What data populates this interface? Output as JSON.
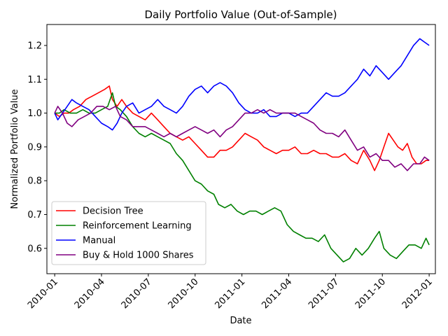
{
  "chart_data": {
    "type": "line",
    "title": "Daily Portfolio Value (Out-of-Sample)",
    "xlabel": "Date",
    "ylabel": "Normalized Portfolio Value",
    "xlim": [
      -0.5,
      24.4
    ],
    "ylim": [
      0.525,
      1.262
    ],
    "x_ticks": [
      {
        "pos": 0,
        "label": "2010-01"
      },
      {
        "pos": 3,
        "label": "2010-04"
      },
      {
        "pos": 6,
        "label": "2010-07"
      },
      {
        "pos": 9,
        "label": "2010-10"
      },
      {
        "pos": 12,
        "label": "2011-01"
      },
      {
        "pos": 15,
        "label": "2011-04"
      },
      {
        "pos": 18,
        "label": "2011-07"
      },
      {
        "pos": 21,
        "label": "2011-10"
      },
      {
        "pos": 24,
        "label": "2012-01"
      }
    ],
    "y_ticks": [
      {
        "pos": 0.6,
        "label": "0.6"
      },
      {
        "pos": 0.7,
        "label": "0.7"
      },
      {
        "pos": 0.8,
        "label": "0.8"
      },
      {
        "pos": 0.9,
        "label": "0.9"
      },
      {
        "pos": 1.0,
        "label": "1.0"
      },
      {
        "pos": 1.1,
        "label": "1.1"
      },
      {
        "pos": 1.2,
        "label": "1.2"
      }
    ],
    "legend_position": "lower-left",
    "series": [
      {
        "name": "Decision Tree",
        "color": "#ff0000",
        "points": [
          [
            0,
            1.0
          ],
          [
            0.3,
            0.99
          ],
          [
            0.6,
            1.0
          ],
          [
            0.9,
            1.0
          ],
          [
            1.2,
            1.01
          ],
          [
            1.6,
            1.02
          ],
          [
            2.0,
            1.04
          ],
          [
            2.4,
            1.05
          ],
          [
            2.8,
            1.06
          ],
          [
            3.2,
            1.07
          ],
          [
            3.5,
            1.08
          ],
          [
            3.7,
            1.04
          ],
          [
            4.0,
            1.02
          ],
          [
            4.3,
            1.04
          ],
          [
            4.6,
            1.02
          ],
          [
            5.0,
            1.0
          ],
          [
            5.4,
            0.99
          ],
          [
            5.8,
            0.98
          ],
          [
            6.2,
            1.0
          ],
          [
            6.6,
            0.98
          ],
          [
            7.0,
            0.96
          ],
          [
            7.4,
            0.94
          ],
          [
            7.8,
            0.93
          ],
          [
            8.2,
            0.92
          ],
          [
            8.6,
            0.93
          ],
          [
            9.0,
            0.91
          ],
          [
            9.4,
            0.89
          ],
          [
            9.8,
            0.87
          ],
          [
            10.2,
            0.87
          ],
          [
            10.6,
            0.89
          ],
          [
            11.0,
            0.89
          ],
          [
            11.4,
            0.9
          ],
          [
            11.8,
            0.92
          ],
          [
            12.2,
            0.94
          ],
          [
            12.6,
            0.93
          ],
          [
            13.0,
            0.92
          ],
          [
            13.4,
            0.9
          ],
          [
            13.8,
            0.89
          ],
          [
            14.2,
            0.88
          ],
          [
            14.6,
            0.89
          ],
          [
            15.0,
            0.89
          ],
          [
            15.4,
            0.9
          ],
          [
            15.8,
            0.88
          ],
          [
            16.2,
            0.88
          ],
          [
            16.6,
            0.89
          ],
          [
            17.0,
            0.88
          ],
          [
            17.4,
            0.88
          ],
          [
            17.8,
            0.87
          ],
          [
            18.2,
            0.87
          ],
          [
            18.6,
            0.88
          ],
          [
            19.0,
            0.86
          ],
          [
            19.4,
            0.85
          ],
          [
            19.8,
            0.89
          ],
          [
            20.2,
            0.86
          ],
          [
            20.5,
            0.83
          ],
          [
            20.8,
            0.86
          ],
          [
            21.1,
            0.9
          ],
          [
            21.4,
            0.94
          ],
          [
            21.7,
            0.92
          ],
          [
            22.0,
            0.9
          ],
          [
            22.3,
            0.89
          ],
          [
            22.6,
            0.91
          ],
          [
            22.9,
            0.87
          ],
          [
            23.2,
            0.85
          ],
          [
            23.5,
            0.85
          ],
          [
            23.8,
            0.86
          ],
          [
            24.0,
            0.86
          ]
        ]
      },
      {
        "name": "Reinforcement Learning",
        "color": "#008000",
        "points": [
          [
            0,
            1.0
          ],
          [
            0.3,
            1.0
          ],
          [
            0.6,
            1.01
          ],
          [
            1.0,
            1.0
          ],
          [
            1.4,
            1.0
          ],
          [
            1.8,
            1.01
          ],
          [
            2.2,
            1.0
          ],
          [
            2.6,
            1.0
          ],
          [
            3.0,
            1.01
          ],
          [
            3.4,
            1.02
          ],
          [
            3.7,
            1.06
          ],
          [
            3.9,
            1.02
          ],
          [
            4.2,
            1.01
          ],
          [
            4.6,
            0.99
          ],
          [
            5.0,
            0.96
          ],
          [
            5.4,
            0.94
          ],
          [
            5.8,
            0.93
          ],
          [
            6.2,
            0.94
          ],
          [
            6.6,
            0.93
          ],
          [
            7.0,
            0.92
          ],
          [
            7.4,
            0.91
          ],
          [
            7.8,
            0.88
          ],
          [
            8.2,
            0.86
          ],
          [
            8.6,
            0.83
          ],
          [
            9.0,
            0.8
          ],
          [
            9.4,
            0.79
          ],
          [
            9.8,
            0.77
          ],
          [
            10.2,
            0.76
          ],
          [
            10.5,
            0.73
          ],
          [
            10.9,
            0.72
          ],
          [
            11.3,
            0.73
          ],
          [
            11.7,
            0.71
          ],
          [
            12.1,
            0.7
          ],
          [
            12.5,
            0.71
          ],
          [
            12.9,
            0.71
          ],
          [
            13.3,
            0.7
          ],
          [
            13.7,
            0.71
          ],
          [
            14.1,
            0.72
          ],
          [
            14.5,
            0.71
          ],
          [
            14.9,
            0.67
          ],
          [
            15.3,
            0.65
          ],
          [
            15.7,
            0.64
          ],
          [
            16.1,
            0.63
          ],
          [
            16.5,
            0.63
          ],
          [
            16.9,
            0.62
          ],
          [
            17.3,
            0.64
          ],
          [
            17.7,
            0.6
          ],
          [
            18.1,
            0.58
          ],
          [
            18.5,
            0.56
          ],
          [
            18.9,
            0.57
          ],
          [
            19.3,
            0.6
          ],
          [
            19.7,
            0.58
          ],
          [
            20.1,
            0.6
          ],
          [
            20.5,
            0.63
          ],
          [
            20.8,
            0.65
          ],
          [
            21.1,
            0.6
          ],
          [
            21.5,
            0.58
          ],
          [
            21.9,
            0.57
          ],
          [
            22.3,
            0.59
          ],
          [
            22.7,
            0.61
          ],
          [
            23.1,
            0.61
          ],
          [
            23.5,
            0.6
          ],
          [
            23.8,
            0.63
          ],
          [
            24.0,
            0.61
          ]
        ]
      },
      {
        "name": "Manual",
        "color": "#0000ff",
        "points": [
          [
            0,
            1.0
          ],
          [
            0.2,
            0.98
          ],
          [
            0.5,
            1.0
          ],
          [
            0.8,
            1.02
          ],
          [
            1.1,
            1.04
          ],
          [
            1.4,
            1.03
          ],
          [
            1.8,
            1.02
          ],
          [
            2.2,
            1.01
          ],
          [
            2.6,
            0.99
          ],
          [
            3.0,
            0.97
          ],
          [
            3.4,
            0.96
          ],
          [
            3.7,
            0.95
          ],
          [
            4.0,
            0.97
          ],
          [
            4.3,
            1.0
          ],
          [
            4.6,
            1.02
          ],
          [
            5.0,
            1.03
          ],
          [
            5.4,
            1.0
          ],
          [
            5.8,
            1.01
          ],
          [
            6.2,
            1.02
          ],
          [
            6.6,
            1.04
          ],
          [
            7.0,
            1.02
          ],
          [
            7.4,
            1.01
          ],
          [
            7.8,
            1.0
          ],
          [
            8.2,
            1.02
          ],
          [
            8.6,
            1.05
          ],
          [
            9.0,
            1.07
          ],
          [
            9.4,
            1.08
          ],
          [
            9.8,
            1.06
          ],
          [
            10.2,
            1.08
          ],
          [
            10.6,
            1.09
          ],
          [
            11.0,
            1.08
          ],
          [
            11.4,
            1.06
          ],
          [
            11.8,
            1.03
          ],
          [
            12.2,
            1.01
          ],
          [
            12.6,
            1.0
          ],
          [
            13.0,
            1.0
          ],
          [
            13.4,
            1.01
          ],
          [
            13.8,
            0.99
          ],
          [
            14.2,
            0.99
          ],
          [
            14.6,
            1.0
          ],
          [
            15.0,
            1.0
          ],
          [
            15.4,
            0.99
          ],
          [
            15.8,
            1.0
          ],
          [
            16.2,
            1.0
          ],
          [
            16.6,
            1.02
          ],
          [
            17.0,
            1.04
          ],
          [
            17.4,
            1.06
          ],
          [
            17.8,
            1.05
          ],
          [
            18.2,
            1.05
          ],
          [
            18.6,
            1.06
          ],
          [
            19.0,
            1.08
          ],
          [
            19.4,
            1.1
          ],
          [
            19.8,
            1.13
          ],
          [
            20.2,
            1.11
          ],
          [
            20.6,
            1.14
          ],
          [
            21.0,
            1.12
          ],
          [
            21.4,
            1.1
          ],
          [
            21.8,
            1.12
          ],
          [
            22.2,
            1.14
          ],
          [
            22.6,
            1.17
          ],
          [
            23.0,
            1.2
          ],
          [
            23.4,
            1.22
          ],
          [
            23.7,
            1.21
          ],
          [
            24.0,
            1.2
          ]
        ]
      },
      {
        "name": "Buy & Hold 1000 Shares",
        "color": "#800080",
        "points": [
          [
            0,
            1.0
          ],
          [
            0.2,
            1.02
          ],
          [
            0.5,
            1.0
          ],
          [
            0.8,
            0.97
          ],
          [
            1.1,
            0.96
          ],
          [
            1.5,
            0.98
          ],
          [
            1.9,
            0.99
          ],
          [
            2.3,
            1.0
          ],
          [
            2.7,
            1.02
          ],
          [
            3.1,
            1.02
          ],
          [
            3.5,
            1.01
          ],
          [
            3.9,
            1.02
          ],
          [
            4.2,
            0.99
          ],
          [
            4.6,
            0.98
          ],
          [
            5.0,
            0.96
          ],
          [
            5.4,
            0.96
          ],
          [
            5.8,
            0.96
          ],
          [
            6.2,
            0.95
          ],
          [
            6.6,
            0.94
          ],
          [
            7.0,
            0.93
          ],
          [
            7.4,
            0.94
          ],
          [
            7.8,
            0.93
          ],
          [
            8.2,
            0.94
          ],
          [
            8.6,
            0.95
          ],
          [
            9.0,
            0.96
          ],
          [
            9.4,
            0.95
          ],
          [
            9.8,
            0.94
          ],
          [
            10.2,
            0.95
          ],
          [
            10.6,
            0.93
          ],
          [
            11.0,
            0.95
          ],
          [
            11.4,
            0.96
          ],
          [
            11.8,
            0.98
          ],
          [
            12.2,
            1.0
          ],
          [
            12.6,
            1.0
          ],
          [
            13.0,
            1.01
          ],
          [
            13.4,
            1.0
          ],
          [
            13.8,
            1.01
          ],
          [
            14.2,
            1.0
          ],
          [
            14.6,
            1.0
          ],
          [
            15.0,
            1.0
          ],
          [
            15.4,
            1.0
          ],
          [
            15.8,
            0.99
          ],
          [
            16.2,
            0.98
          ],
          [
            16.6,
            0.97
          ],
          [
            17.0,
            0.95
          ],
          [
            17.4,
            0.94
          ],
          [
            17.8,
            0.94
          ],
          [
            18.2,
            0.93
          ],
          [
            18.6,
            0.95
          ],
          [
            19.0,
            0.92
          ],
          [
            19.4,
            0.89
          ],
          [
            19.8,
            0.9
          ],
          [
            20.2,
            0.87
          ],
          [
            20.6,
            0.88
          ],
          [
            21.0,
            0.86
          ],
          [
            21.4,
            0.86
          ],
          [
            21.8,
            0.84
          ],
          [
            22.2,
            0.85
          ],
          [
            22.6,
            0.83
          ],
          [
            23.0,
            0.85
          ],
          [
            23.4,
            0.85
          ],
          [
            23.7,
            0.87
          ],
          [
            24.0,
            0.86
          ]
        ]
      }
    ]
  }
}
